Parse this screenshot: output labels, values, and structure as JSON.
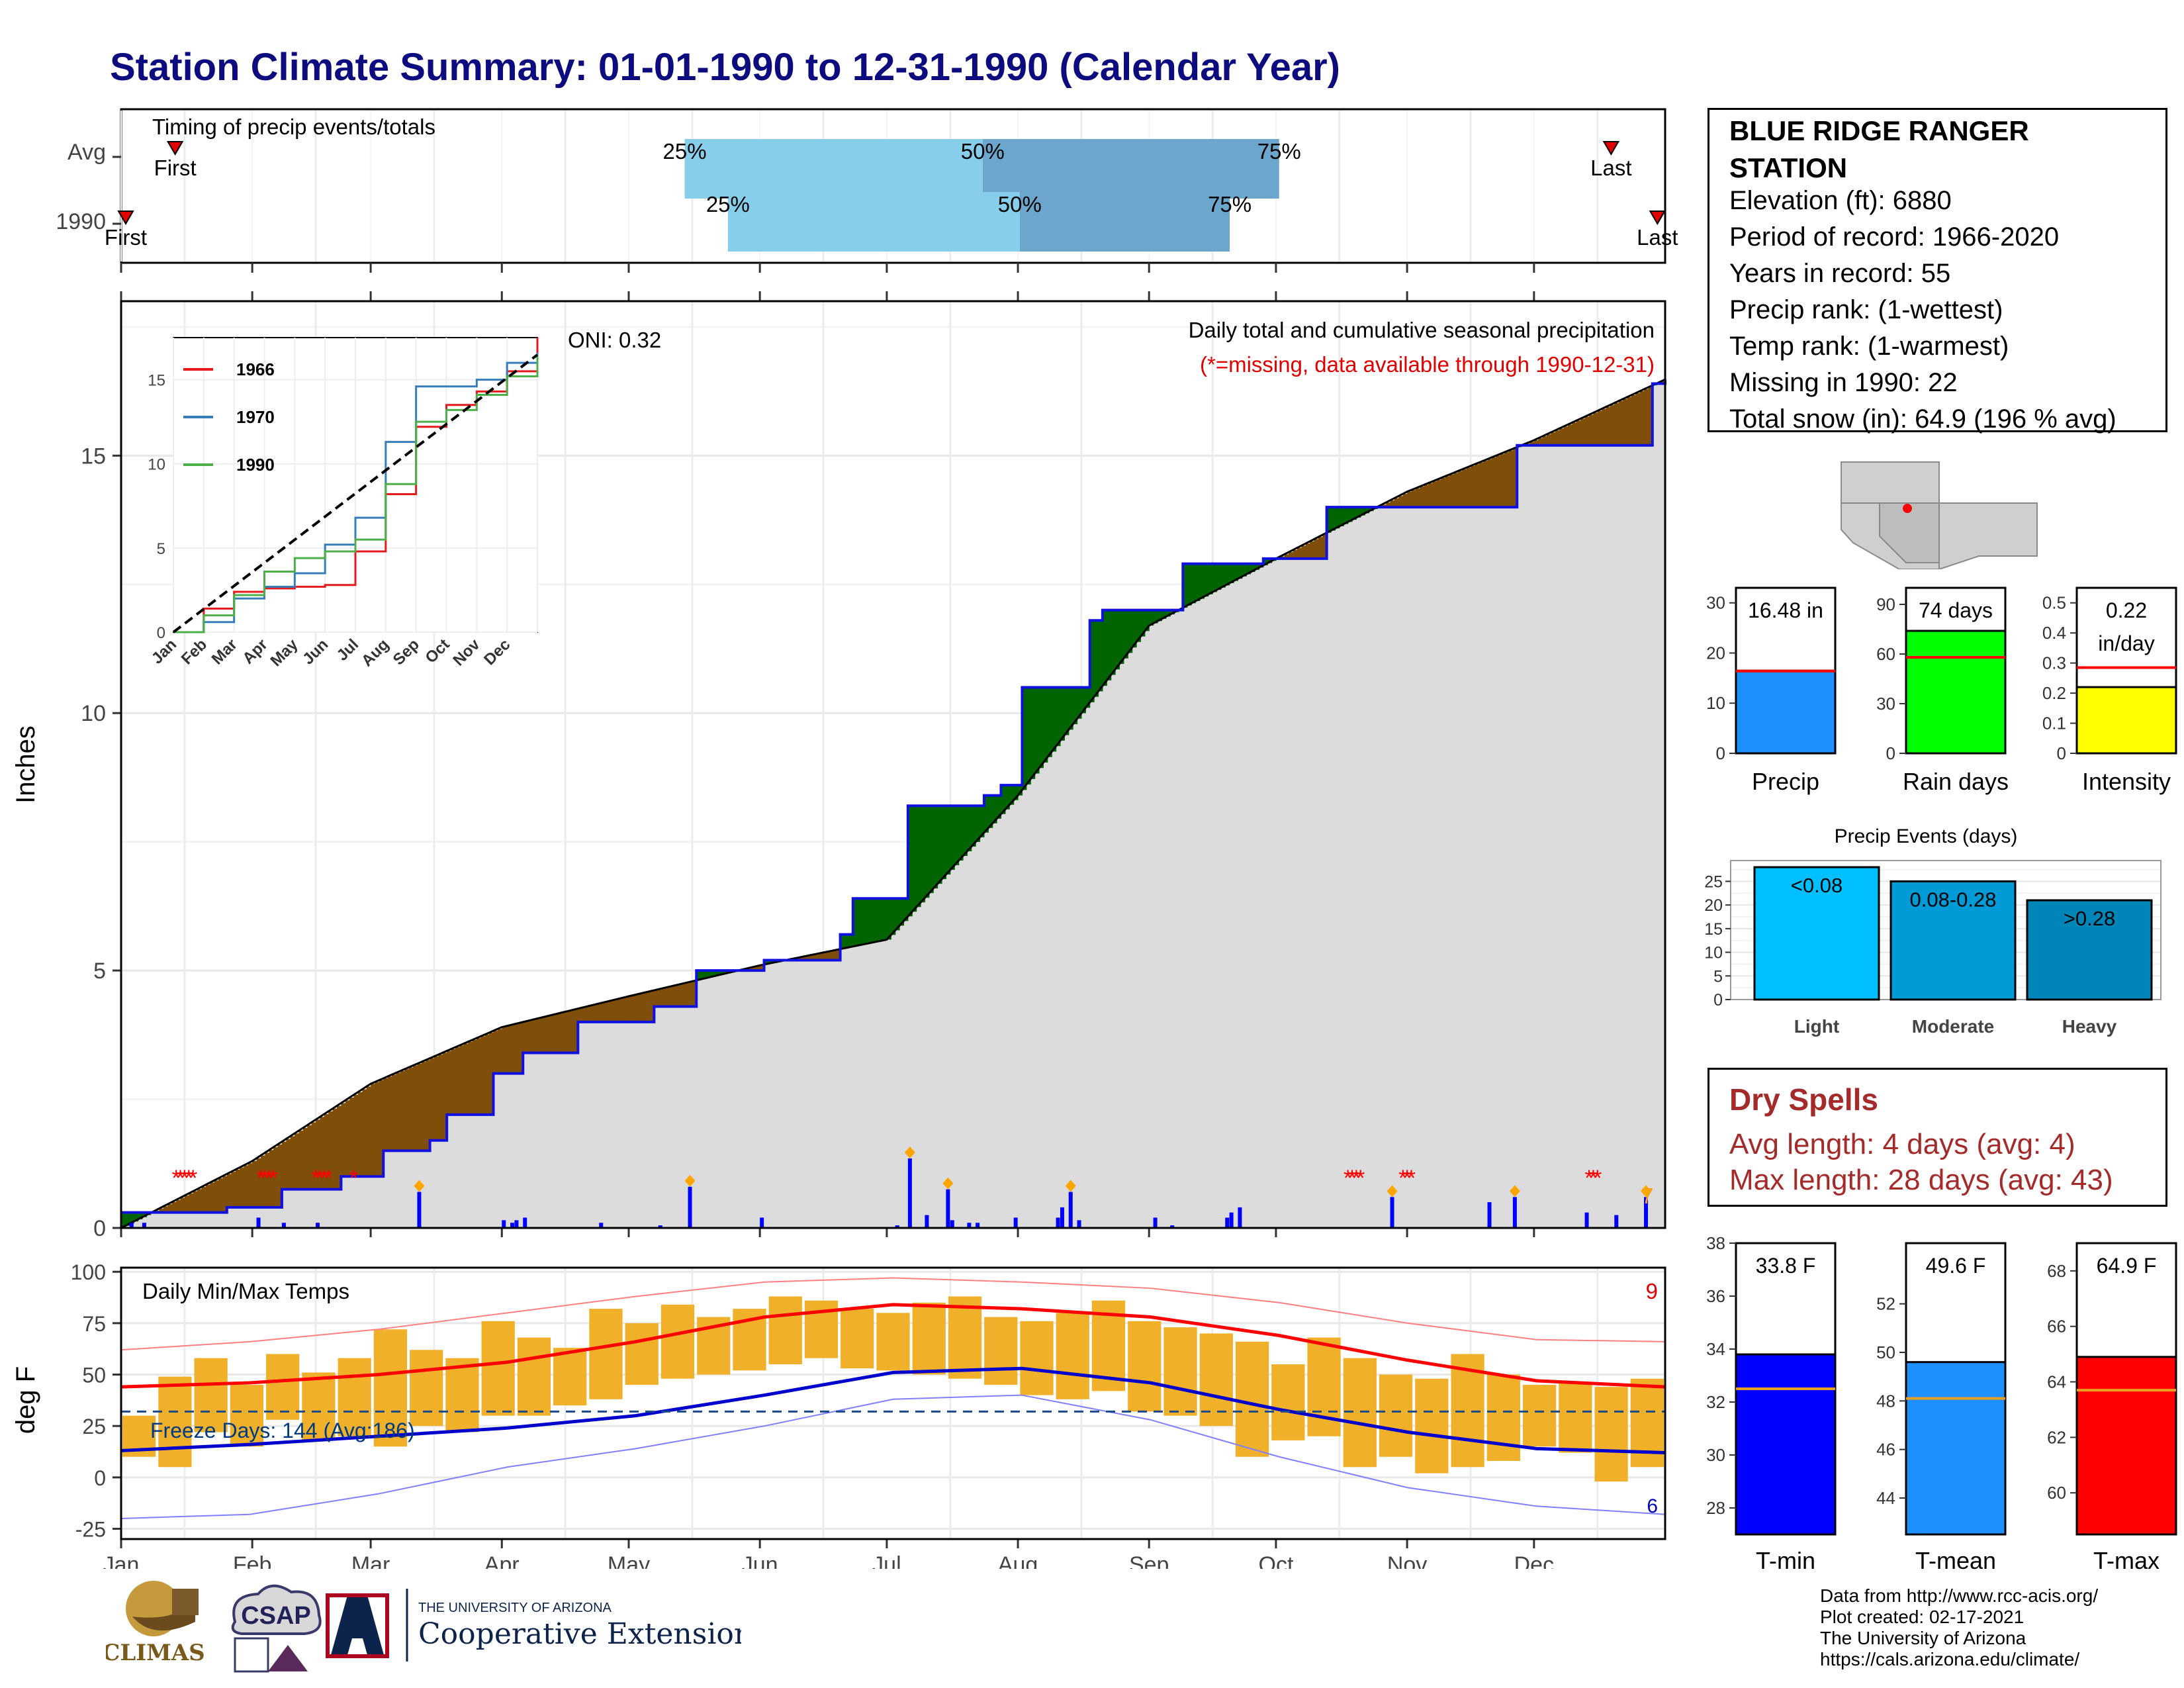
{
  "title": "Station Climate Summary: 01-01-1990 to 12-31-1990 (Calendar Year)",
  "colors": {
    "title": "#0c0c7e",
    "above": "#006400",
    "below": "#7f4f0a",
    "cum": "#1010e0",
    "dryspell": "#a52a2a"
  },
  "info": {
    "station_name": "BLUE RIDGE RANGER STATION",
    "elevation": "Elevation (ft): 6880",
    "period": "Period of record: 1966-2020",
    "years": "Years in record: 55",
    "precip_rank": "Precip rank:  (1-wettest)",
    "temp_rank": "Temp rank:  (1-warmest)",
    "missing": "Missing in 1990: 22",
    "snow": "Total snow (in): 64.9 (196 % avg)"
  },
  "timing": {
    "label": "Timing of precip events/totals",
    "rows": [
      {
        "label": "Avg",
        "q25": 0.365,
        "q50": 0.558,
        "q75": 0.75,
        "first": 0.035,
        "last": 0.965,
        "first_label": "First",
        "last_label": "Last"
      },
      {
        "label": "1990",
        "q25": 0.393,
        "q50": 0.582,
        "q75": 0.718,
        "first": 0.003,
        "last": 0.995,
        "first_label": "First",
        "last_label": "Last"
      }
    ],
    "pct_labels": [
      "25%",
      "50%",
      "75%"
    ]
  },
  "chart_data": [
    {
      "type": "area",
      "title": "Daily total and cumulative seasonal precipitation",
      "subtitle": "(*=missing, data available through 1990-12-31)",
      "annotation": "ONI: 0.32",
      "ylabel": "Inches",
      "ylim": [
        0,
        18
      ],
      "yticks": [
        0,
        5,
        10,
        15
      ],
      "x_months": [
        "Jan",
        "Feb",
        "Mar",
        "Apr",
        "May",
        "Jun",
        "Jul",
        "Aug",
        "Sep",
        "Oct",
        "Nov",
        "Dec"
      ],
      "corner_count": "7",
      "avg_cumulative": {
        "x_day": [
          0,
          31,
          59,
          90,
          120,
          151,
          181,
          212,
          243,
          273,
          304,
          334,
          365
        ],
        "y": [
          0,
          1.3,
          2.8,
          3.9,
          4.5,
          5.1,
          5.6,
          8.4,
          11.7,
          13.0,
          14.3,
          15.3,
          16.48
        ]
      },
      "cumulative_1990": {
        "x_day": [
          0,
          15,
          25,
          38,
          52,
          62,
          73,
          77,
          88,
          95,
          108,
          126,
          136,
          152,
          165,
          170,
          173,
          186,
          194,
          204,
          208,
          213,
          218,
          229,
          232,
          251,
          262,
          270,
          285,
          299,
          330,
          360,
          362,
          365
        ],
        "y": [
          0.3,
          0.3,
          0.4,
          0.75,
          1.0,
          1.5,
          1.7,
          2.2,
          3.0,
          3.4,
          4.0,
          4.3,
          5.0,
          5.2,
          5.2,
          5.7,
          6.4,
          8.2,
          8.2,
          8.4,
          8.6,
          10.5,
          10.5,
          11.8,
          12.0,
          12.9,
          12.9,
          13.0,
          14.0,
          14.0,
          15.2,
          15.2,
          16.4,
          16.48
        ]
      },
      "daily_bars": {
        "x_day": [
          2,
          5,
          32,
          38,
          46,
          70,
          90,
          92,
          93,
          95,
          113,
          127,
          134,
          151,
          183,
          186,
          190,
          195,
          196,
          200,
          202,
          211,
          221,
          222,
          224,
          226,
          244,
          248,
          261,
          262,
          264,
          300,
          323,
          329,
          346,
          353,
          360
        ],
        "y": [
          0.1,
          0.1,
          0.2,
          0.1,
          0.1,
          0.7,
          0.15,
          0.1,
          0.15,
          0.2,
          0.1,
          0.05,
          0.8,
          0.2,
          0.05,
          1.35,
          0.25,
          0.75,
          0.15,
          0.1,
          0.1,
          0.2,
          0.2,
          0.4,
          0.7,
          0.15,
          0.2,
          0.05,
          0.2,
          0.3,
          0.4,
          0.6,
          0.5,
          0.6,
          0.3,
          0.25,
          0.6
        ]
      },
      "missing_days": [
        13,
        14,
        15,
        16,
        17,
        33,
        34,
        35,
        36,
        46,
        47,
        48,
        49,
        55,
        290,
        291,
        292,
        293,
        303,
        304,
        305,
        347,
        348,
        349
      ]
    },
    {
      "type": "line",
      "title": "",
      "xticks": [
        "Jan",
        "Feb",
        "Mar",
        "Apr",
        "May",
        "Jun",
        "Jul",
        "Aug",
        "Sep",
        "Oct",
        "Nov",
        "Dec"
      ],
      "ylim": [
        0,
        17.5
      ],
      "yticks": [
        0,
        5,
        10,
        15
      ],
      "series": [
        {
          "name": "1966",
          "color": "#e41a1c",
          "x": [
            0,
            1,
            2,
            3,
            4,
            5,
            6,
            7,
            8,
            9,
            10,
            11,
            12
          ],
          "y": [
            0,
            1.4,
            2.4,
            2.6,
            2.7,
            2.8,
            4.8,
            8.2,
            12.2,
            13.5,
            14.3,
            15.5,
            17.5
          ]
        },
        {
          "name": "1970",
          "color": "#377eb8",
          "x": [
            0,
            1,
            2,
            3,
            4,
            5,
            6,
            7,
            8,
            9,
            10,
            11,
            12
          ],
          "y": [
            0,
            0.6,
            2.0,
            2.7,
            3.5,
            5.2,
            6.8,
            11.3,
            14.6,
            14.6,
            15.0,
            16.0,
            16.6
          ]
        },
        {
          "name": "1990",
          "color": "#4daf4a",
          "x": [
            0,
            1,
            2,
            3,
            4,
            5,
            6,
            7,
            8,
            9,
            10,
            11,
            12
          ],
          "y": [
            0,
            1.0,
            2.2,
            3.6,
            4.4,
            4.8,
            5.5,
            8.8,
            12.5,
            13.2,
            14.1,
            15.2,
            16.48
          ]
        }
      ],
      "avg_line": {
        "x": [
          0,
          12
        ],
        "y": [
          0,
          16.48
        ]
      }
    },
    {
      "type": "bar",
      "title": "Precip",
      "label_top": "16.48 in",
      "value": 16.48,
      "avg": 16.4,
      "ylim": [
        0,
        33
      ],
      "yticks": [
        0,
        10,
        20,
        30
      ],
      "color": "#1e90ff"
    },
    {
      "type": "bar",
      "title": "Rain days",
      "label_top": "74 days",
      "value": 74,
      "avg": 58,
      "ylim": [
        0,
        100
      ],
      "yticks": [
        0,
        30,
        60,
        90
      ],
      "color": "#00ff00"
    },
    {
      "type": "bar",
      "title": "Intensity",
      "label_top": "0.22",
      "label_top2": "in/day",
      "value": 0.22,
      "avg": 0.285,
      "ylim": [
        0,
        0.55
      ],
      "yticks": [
        0.0,
        0.1,
        0.2,
        0.3,
        0.4,
        0.5
      ],
      "color": "#ffff00"
    },
    {
      "type": "bar",
      "title": "Precip Events (days)",
      "categories": [
        "Light",
        "Moderate",
        "Heavy"
      ],
      "bar_labels": [
        "<0.08",
        "0.08-0.28",
        ">0.28"
      ],
      "values": [
        28,
        25,
        21
      ],
      "ylim": [
        0,
        28
      ],
      "yticks": [
        0,
        5,
        10,
        15,
        20,
        25
      ],
      "colors": [
        "#00bfff",
        "#009ad6",
        "#0085b8"
      ]
    },
    {
      "type": "bar",
      "title": "Daily Min/Max Temps",
      "ylabel": "deg F",
      "ylim": [
        -30,
        102
      ],
      "yticks": [
        -25,
        0,
        25,
        50,
        75,
        100
      ],
      "annotation": "Freeze Days: 144 (Avg:186)",
      "freeze_line": 32,
      "count_top": "9",
      "count_bottom": "6",
      "normal_max": {
        "x_month": [
          0,
          1,
          2,
          3,
          4,
          5,
          6,
          7,
          8,
          9,
          10,
          11,
          12
        ],
        "y": [
          44,
          46,
          50,
          56,
          66,
          78,
          84,
          82,
          78,
          69,
          57,
          47,
          44
        ]
      },
      "normal_min": {
        "x_month": [
          0,
          1,
          2,
          3,
          4,
          5,
          6,
          7,
          8,
          9,
          10,
          11,
          12
        ],
        "y": [
          13,
          16,
          20,
          24,
          30,
          40,
          51,
          53,
          46,
          33,
          22,
          14,
          12
        ]
      },
      "record_max": {
        "x_month": [
          0,
          1,
          2,
          3,
          4,
          5,
          6,
          7,
          8,
          9,
          10,
          11,
          12
        ],
        "y": [
          62,
          66,
          72,
          80,
          88,
          95,
          97,
          95,
          92,
          85,
          75,
          67,
          66
        ]
      },
      "record_min": {
        "x_month": [
          0,
          1,
          2,
          3,
          4,
          5,
          6,
          7,
          8,
          9,
          10,
          11,
          12
        ],
        "y": [
          -20,
          -18,
          -8,
          5,
          14,
          25,
          38,
          40,
          28,
          10,
          -5,
          -14,
          -18
        ]
      },
      "daily_max": [
        30,
        49,
        58,
        45,
        60,
        51,
        58,
        72,
        62,
        58,
        76,
        68,
        63,
        82,
        75,
        84,
        78,
        82,
        88,
        86,
        82,
        80,
        85,
        88,
        78,
        76,
        80,
        86,
        76,
        73,
        70,
        66,
        55,
        68,
        58,
        50,
        48,
        60,
        50,
        45,
        46,
        44,
        48
      ],
      "daily_min": [
        10,
        5,
        22,
        15,
        28,
        18,
        20,
        15,
        25,
        22,
        30,
        30,
        35,
        38,
        45,
        48,
        50,
        52,
        55,
        58,
        53,
        52,
        50,
        48,
        45,
        40,
        38,
        42,
        32,
        30,
        25,
        10,
        18,
        20,
        5,
        10,
        2,
        5,
        8,
        15,
        12,
        -2,
        5
      ]
    },
    {
      "type": "bar",
      "title": "T-min",
      "label_top": "33.8 F",
      "value": 33.8,
      "avg": 32.5,
      "ylim": [
        27,
        38
      ],
      "yticks": [
        28,
        30,
        32,
        34,
        36,
        38
      ],
      "color": "#0000ff"
    },
    {
      "type": "bar",
      "title": "T-mean",
      "label_top": "49.6 F",
      "value": 49.6,
      "avg": 48.1,
      "ylim": [
        42.5,
        54.5
      ],
      "yticks": [
        44,
        46,
        48,
        50,
        52
      ],
      "color": "#1e90ff"
    },
    {
      "type": "bar",
      "title": "T-max",
      "label_top": "64.9 F",
      "value": 64.9,
      "avg": 63.7,
      "ylim": [
        58.5,
        69
      ],
      "yticks": [
        60,
        62,
        64,
        66,
        68
      ],
      "color": "#ff0000"
    }
  ],
  "dry_spells": {
    "title": "Dry Spells",
    "avg_length": "Avg length: 4 days (avg: 4)",
    "max_length": "Max length: 28 days (avg: 43)"
  },
  "logos": {
    "climas": "CLIMAS",
    "csap": "CSAP",
    "ua_line1": "THE UNIVERSITY OF ARIZONA",
    "ua_line2": "Cooperative Extension"
  },
  "credits": [
    "Data from http://www.rcc-acis.org/",
    "Plot created: 02-17-2021",
    "The University of Arizona",
    "https://cals.arizona.edu/climate/"
  ]
}
